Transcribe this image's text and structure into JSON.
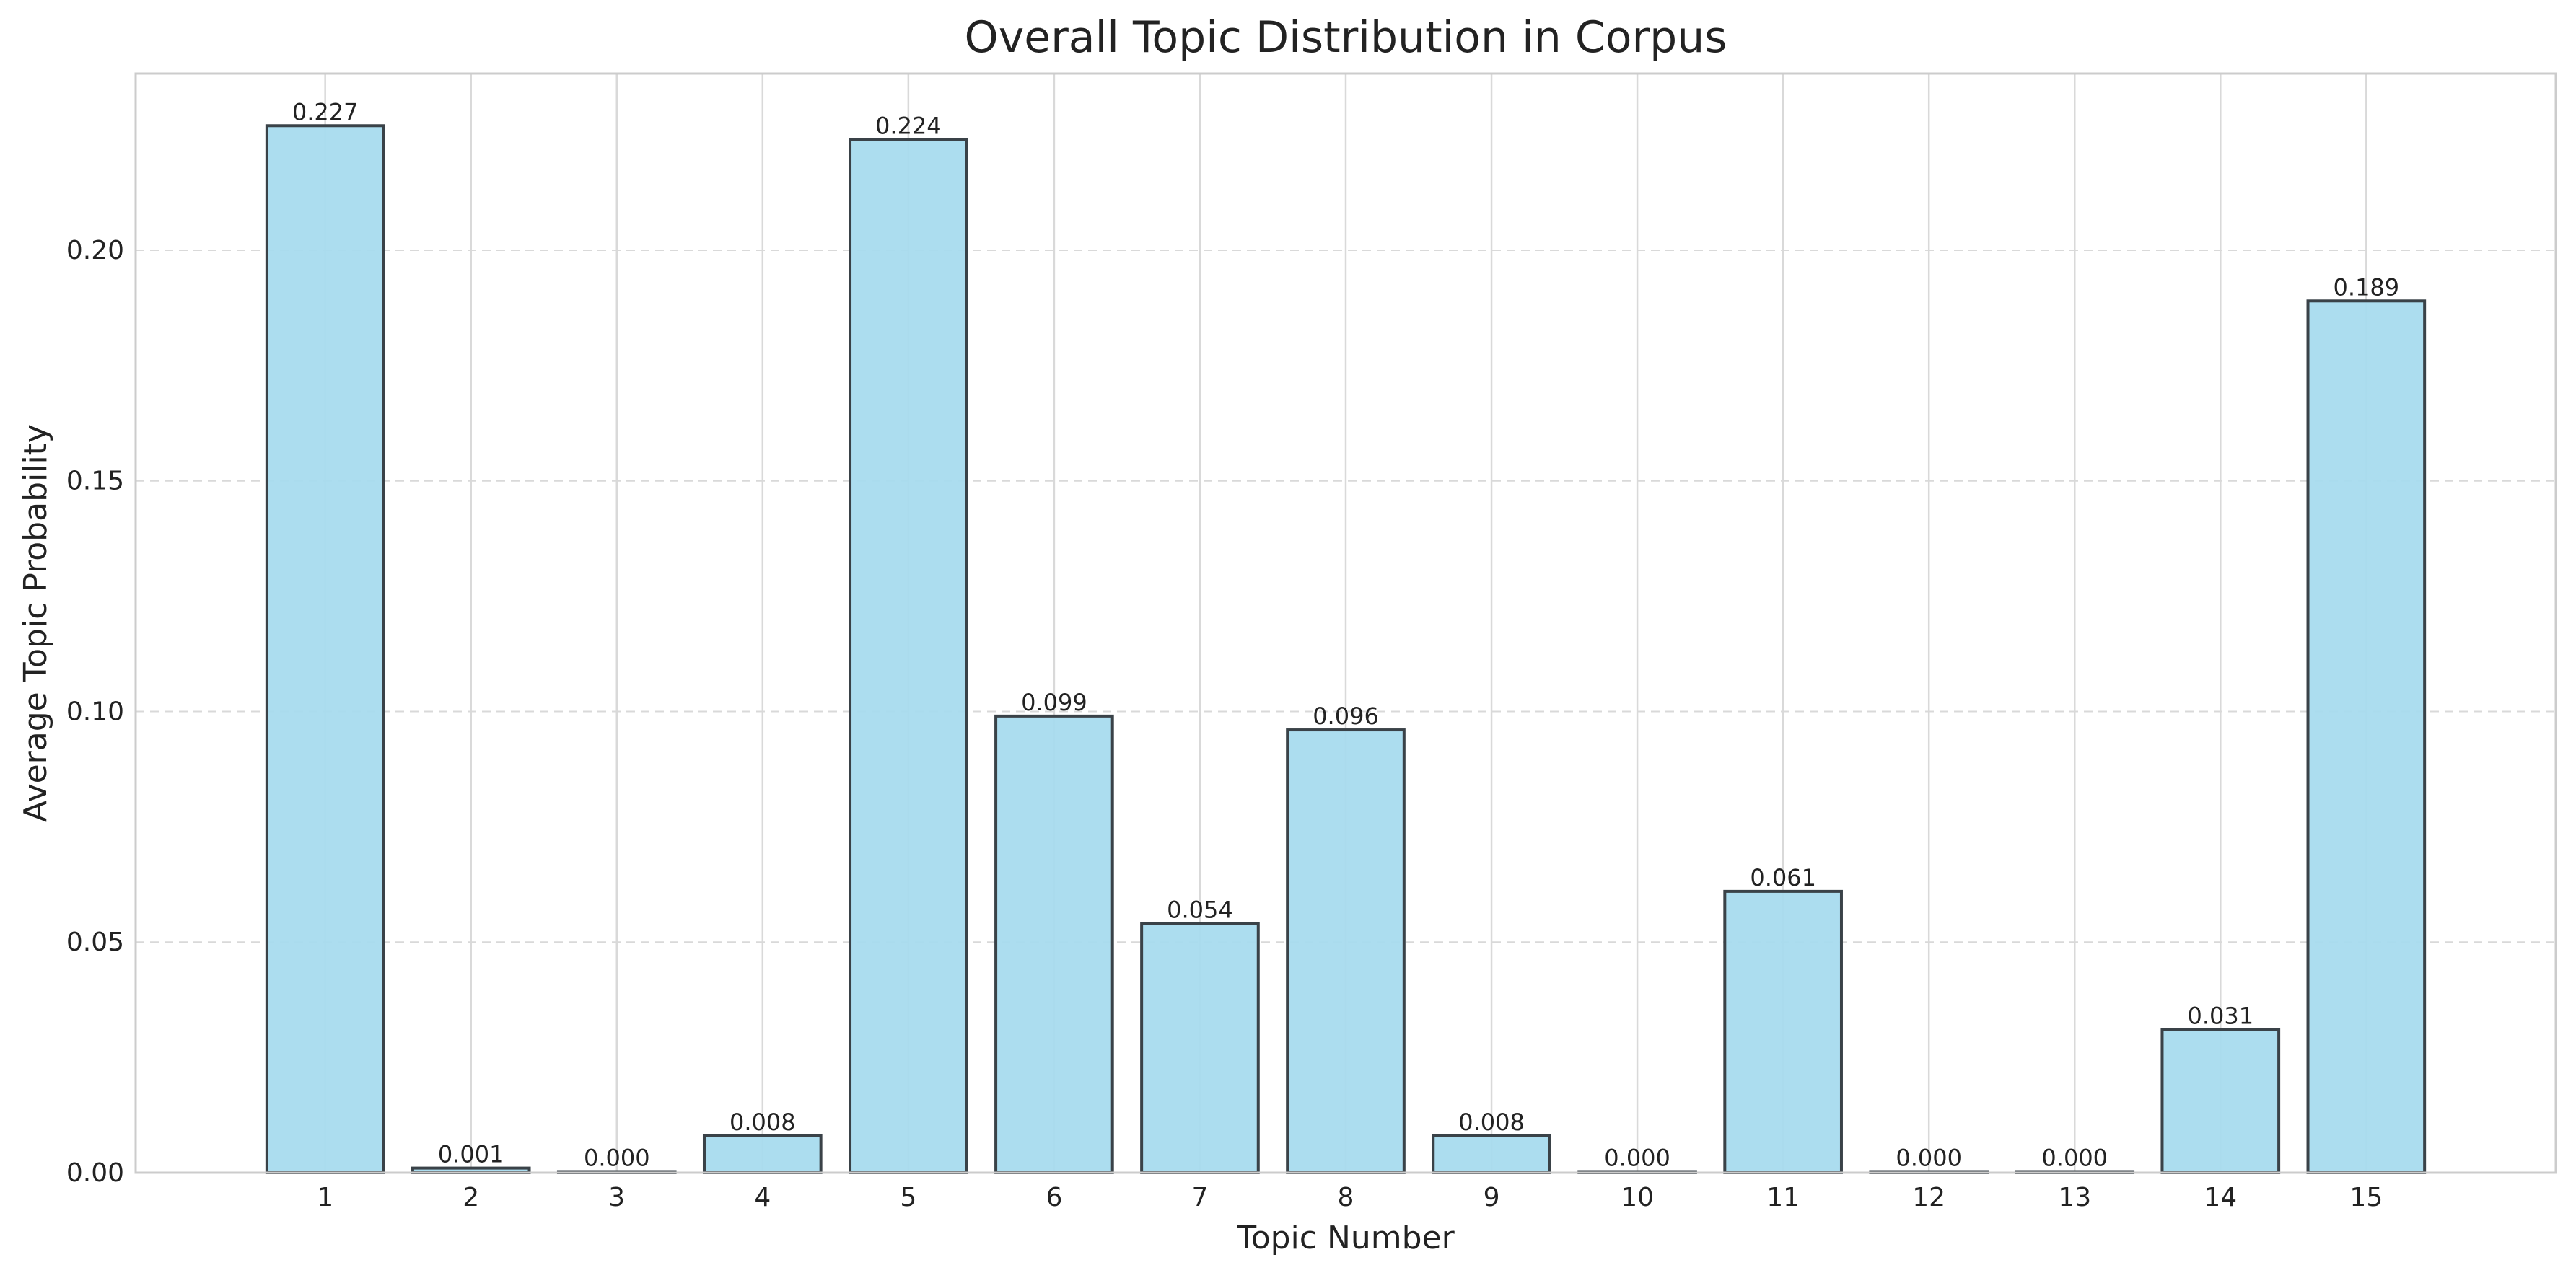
{
  "chart_data": {
    "type": "bar",
    "title": "Overall Topic Distribution in Corpus",
    "xlabel": "Topic Number",
    "ylabel": "Average Topic Probability",
    "categories": [
      "1",
      "2",
      "3",
      "4",
      "5",
      "6",
      "7",
      "8",
      "9",
      "10",
      "11",
      "12",
      "13",
      "14",
      "15"
    ],
    "values": [
      0.227,
      0.001,
      0.0,
      0.008,
      0.224,
      0.099,
      0.054,
      0.096,
      0.008,
      0.0,
      0.061,
      0.0,
      0.0,
      0.031,
      0.189
    ],
    "data_labels": [
      "0.227",
      "0.001",
      "0.000",
      "0.008",
      "0.224",
      "0.099",
      "0.054",
      "0.096",
      "0.008",
      "0.000",
      "0.061",
      "0.000",
      "0.000",
      "0.031",
      "0.189"
    ],
    "yticks": [
      0.0,
      0.05,
      0.1,
      0.15,
      0.2
    ],
    "ytick_labels": [
      "0.00",
      "0.05",
      "0.10",
      "0.15",
      "0.20"
    ],
    "ylim": [
      0,
      0.2383
    ],
    "grid": {
      "y": "dashed",
      "x": "solid"
    },
    "colors": {
      "bar_fill": "#A8DBEE",
      "bar_edge": "#3A4248",
      "grid": "#D9D9D9",
      "frame": "#CCCCCC"
    }
  }
}
